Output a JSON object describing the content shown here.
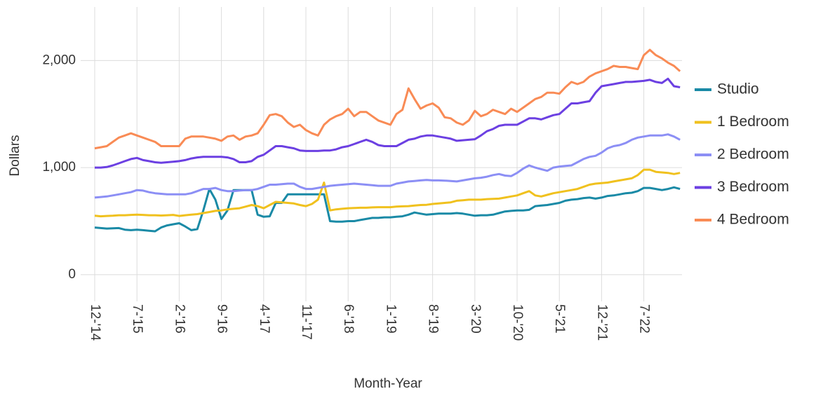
{
  "chart_data": {
    "type": "line",
    "x_label": "Month-Year",
    "y_label": "Dollars",
    "categories": [
      "12-'14",
      null,
      null,
      null,
      null,
      null,
      null,
      "7-'15",
      null,
      null,
      null,
      null,
      null,
      null,
      "2-'16",
      null,
      null,
      null,
      null,
      null,
      null,
      "9-'16",
      null,
      null,
      null,
      null,
      null,
      null,
      "4-'17",
      null,
      null,
      null,
      null,
      null,
      null,
      "11-'17",
      null,
      null,
      null,
      null,
      null,
      null,
      "6-'18",
      null,
      null,
      null,
      null,
      null,
      null,
      "1-'19",
      null,
      null,
      null,
      null,
      null,
      null,
      "8-'19",
      null,
      null,
      null,
      null,
      null,
      null,
      "3-'20",
      null,
      null,
      null,
      null,
      null,
      null,
      "10-'20",
      null,
      null,
      null,
      null,
      null,
      null,
      "5-'21",
      null,
      null,
      null,
      null,
      null,
      null,
      "12-'21",
      null,
      null,
      null,
      null,
      null,
      null,
      "7-'22",
      null,
      null,
      null,
      null,
      null,
      null
    ],
    "ylim": [
      -250,
      2500
    ],
    "yticks": [
      0,
      {
        "value": 1000,
        "label": "1,000"
      },
      {
        "value": 2000,
        "label": "2,000"
      }
    ],
    "grid": true,
    "legend": "right",
    "series": [
      {
        "name": "Studio",
        "color": "#1a8aa6",
        "values": [
          440,
          435,
          430,
          432,
          435,
          420,
          415,
          420,
          415,
          410,
          405,
          440,
          460,
          470,
          480,
          450,
          415,
          425,
          600,
          800,
          700,
          520,
          600,
          790,
          790,
          790,
          790,
          560,
          540,
          545,
          670,
          670,
          750,
          750,
          750,
          750,
          750,
          750,
          750,
          500,
          495,
          495,
          500,
          500,
          510,
          520,
          530,
          530,
          535,
          535,
          540,
          545,
          560,
          580,
          570,
          560,
          565,
          570,
          570,
          570,
          575,
          570,
          560,
          550,
          555,
          555,
          560,
          575,
          590,
          595,
          600,
          600,
          605,
          640,
          645,
          650,
          660,
          670,
          690,
          700,
          705,
          715,
          720,
          710,
          720,
          735,
          740,
          750,
          760,
          765,
          780,
          810,
          810,
          800,
          790,
          800,
          815,
          800
        ]
      },
      {
        "name": "1 Bedroom",
        "color": "#f0c11e",
        "values": [
          550,
          545,
          548,
          550,
          555,
          555,
          558,
          560,
          558,
          555,
          555,
          552,
          555,
          558,
          548,
          555,
          560,
          565,
          575,
          585,
          595,
          600,
          610,
          615,
          620,
          635,
          650,
          640,
          620,
          650,
          680,
          675,
          670,
          665,
          650,
          640,
          660,
          700,
          860,
          600,
          610,
          615,
          620,
          622,
          625,
          625,
          628,
          630,
          630,
          630,
          635,
          638,
          640,
          645,
          650,
          652,
          660,
          665,
          670,
          675,
          690,
          695,
          700,
          700,
          700,
          705,
          708,
          710,
          720,
          730,
          740,
          760,
          780,
          740,
          730,
          745,
          760,
          770,
          780,
          790,
          800,
          820,
          840,
          850,
          855,
          860,
          870,
          880,
          890,
          900,
          930,
          980,
          980,
          960,
          955,
          950,
          940,
          950
        ]
      },
      {
        "name": "2 Bedroom",
        "color": "#8c8ff5",
        "values": [
          720,
          725,
          730,
          740,
          750,
          760,
          770,
          790,
          785,
          770,
          760,
          755,
          750,
          750,
          750,
          750,
          760,
          780,
          800,
          800,
          810,
          790,
          780,
          780,
          785,
          790,
          790,
          800,
          820,
          840,
          840,
          845,
          850,
          850,
          820,
          800,
          800,
          810,
          820,
          830,
          835,
          840,
          845,
          850,
          845,
          840,
          835,
          830,
          830,
          830,
          850,
          860,
          870,
          875,
          880,
          885,
          880,
          880,
          878,
          875,
          870,
          880,
          890,
          900,
          905,
          915,
          930,
          940,
          925,
          920,
          950,
          990,
          1020,
          1000,
          985,
          970,
          1000,
          1010,
          1015,
          1020,
          1050,
          1080,
          1100,
          1110,
          1140,
          1180,
          1200,
          1210,
          1230,
          1260,
          1280,
          1290,
          1300,
          1300,
          1300,
          1310,
          1290,
          1260
        ]
      },
      {
        "name": "3 Bedroom",
        "color": "#6c40e2",
        "values": [
          1000,
          1000,
          1005,
          1020,
          1040,
          1060,
          1080,
          1090,
          1070,
          1060,
          1050,
          1045,
          1050,
          1055,
          1060,
          1070,
          1085,
          1095,
          1100,
          1100,
          1100,
          1100,
          1095,
          1080,
          1050,
          1050,
          1060,
          1100,
          1120,
          1160,
          1200,
          1200,
          1190,
          1180,
          1160,
          1155,
          1155,
          1155,
          1160,
          1160,
          1170,
          1190,
          1200,
          1220,
          1240,
          1260,
          1240,
          1210,
          1200,
          1200,
          1200,
          1230,
          1260,
          1270,
          1290,
          1300,
          1300,
          1290,
          1280,
          1270,
          1250,
          1255,
          1260,
          1265,
          1300,
          1340,
          1360,
          1390,
          1400,
          1400,
          1400,
          1430,
          1460,
          1460,
          1450,
          1470,
          1490,
          1500,
          1550,
          1600,
          1600,
          1610,
          1620,
          1700,
          1760,
          1770,
          1780,
          1790,
          1800,
          1800,
          1805,
          1810,
          1820,
          1800,
          1790,
          1830,
          1760,
          1750
        ]
      },
      {
        "name": "4 Bedroom",
        "color": "#f98b55",
        "values": [
          1180,
          1190,
          1200,
          1240,
          1280,
          1300,
          1320,
          1300,
          1280,
          1260,
          1240,
          1200,
          1200,
          1200,
          1200,
          1270,
          1290,
          1290,
          1290,
          1280,
          1270,
          1250,
          1290,
          1300,
          1260,
          1290,
          1300,
          1320,
          1400,
          1490,
          1500,
          1480,
          1420,
          1380,
          1400,
          1350,
          1320,
          1300,
          1400,
          1450,
          1480,
          1500,
          1550,
          1480,
          1520,
          1520,
          1480,
          1440,
          1420,
          1400,
          1500,
          1540,
          1740,
          1640,
          1550,
          1580,
          1600,
          1560,
          1470,
          1460,
          1420,
          1400,
          1440,
          1530,
          1480,
          1500,
          1540,
          1520,
          1500,
          1550,
          1520,
          1560,
          1600,
          1640,
          1660,
          1700,
          1700,
          1690,
          1750,
          1800,
          1780,
          1800,
          1850,
          1880,
          1900,
          1920,
          1950,
          1940,
          1940,
          1930,
          1920,
          2050,
          2100,
          2050,
          2020,
          1980,
          1950,
          1900
        ]
      }
    ]
  }
}
